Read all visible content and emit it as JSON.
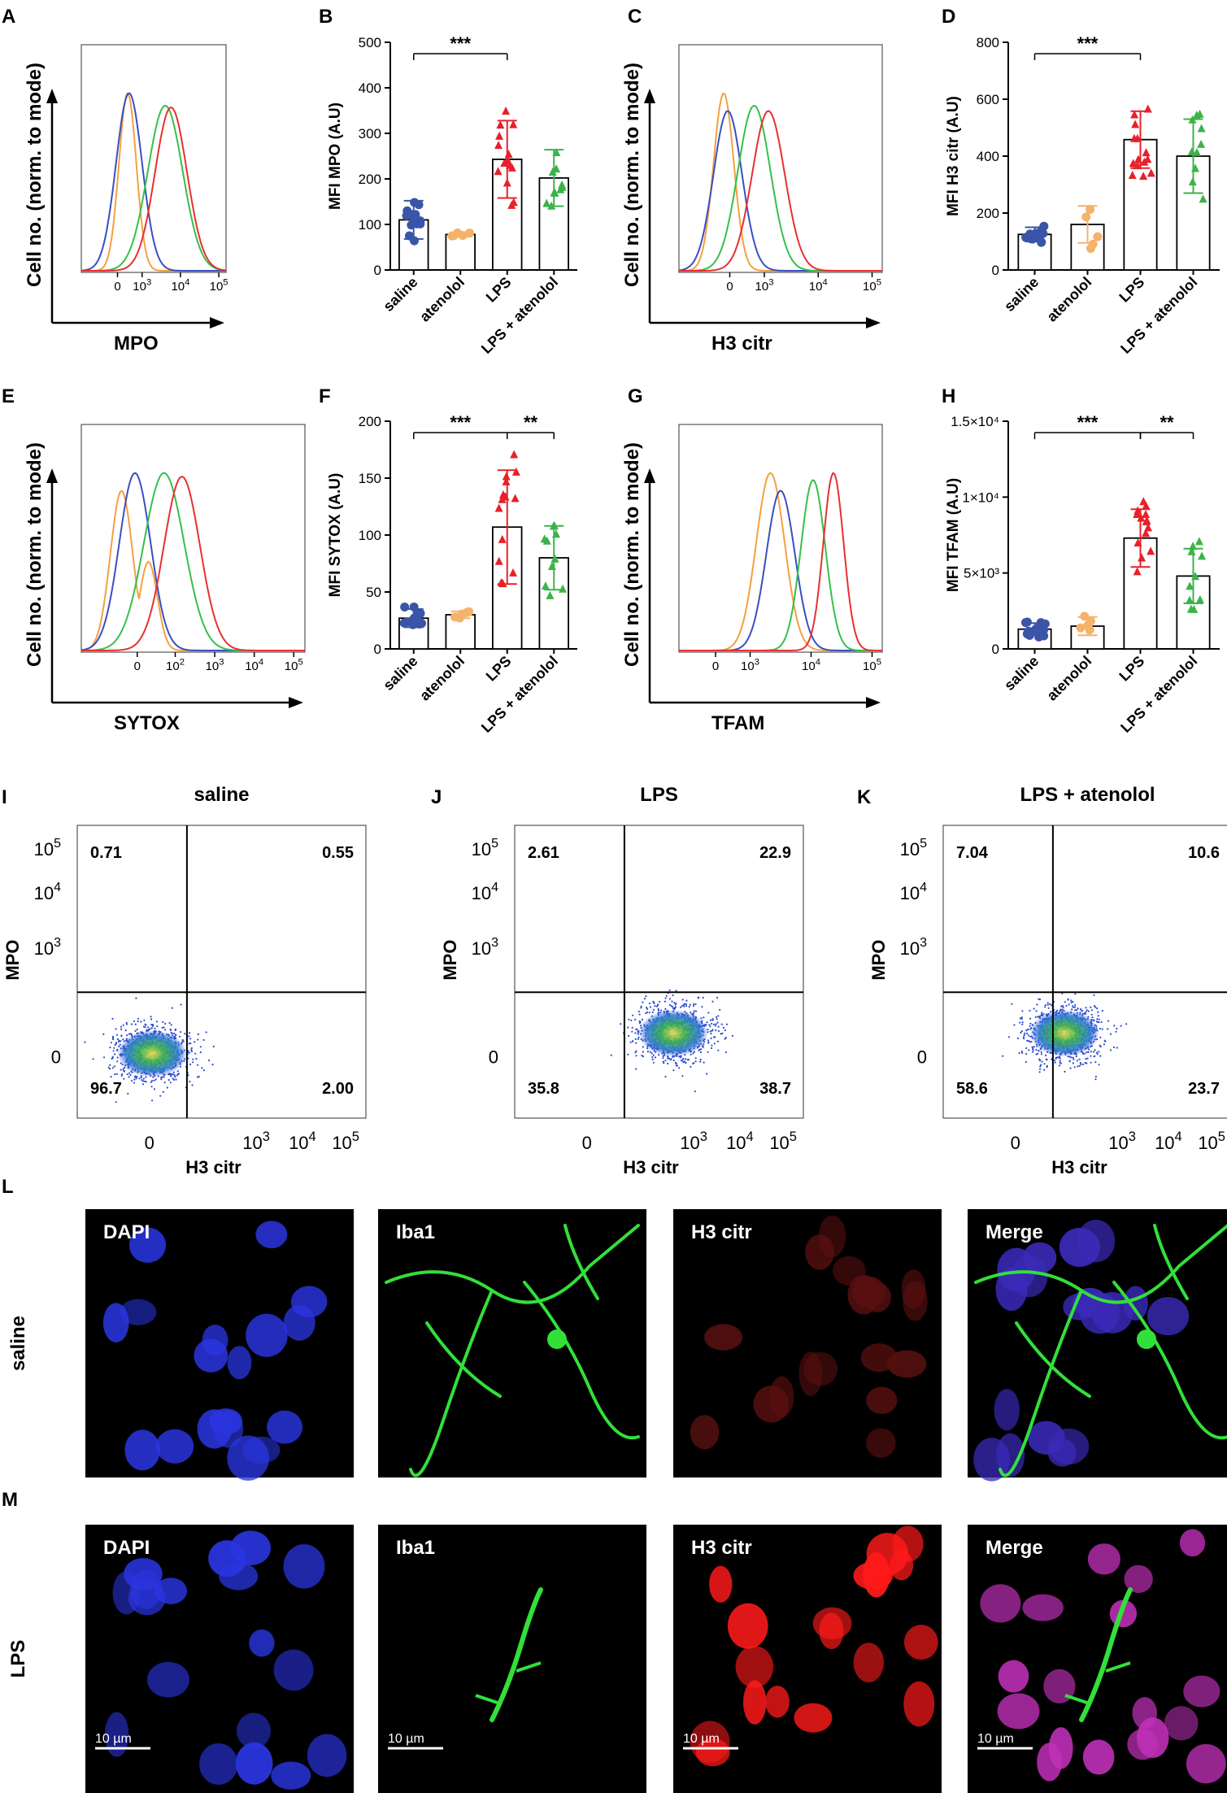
{
  "panel_letters": [
    "A",
    "B",
    "C",
    "D",
    "E",
    "F",
    "G",
    "H",
    "I",
    "J",
    "K",
    "L",
    "M"
  ],
  "histograms": [
    {
      "panel": "A",
      "xlabel": "MPO",
      "ylabel": "Cell no. (norm. to mode)",
      "xticks": [
        "0",
        "10",
        "10",
        "10"
      ],
      "xticks_exp": [
        "",
        "3",
        "4",
        "5"
      ]
    },
    {
      "panel": "C",
      "xlabel": "H3 citr",
      "ylabel": "Cell no. (norm. to mode)",
      "xticks": [
        "0",
        "10",
        "10",
        "10"
      ],
      "xticks_exp": [
        "",
        "3",
        "4",
        "5"
      ]
    },
    {
      "panel": "E",
      "xlabel": "SYTOX",
      "ylabel": "Cell no. (norm. to mode)",
      "xticks": [
        "0",
        "10",
        "10",
        "10",
        "10"
      ],
      "xticks_exp": [
        "",
        "2",
        "3",
        "4",
        "5"
      ]
    },
    {
      "panel": "G",
      "xlabel": "TFAM",
      "ylabel": "Cell no. (norm. to mode)",
      "xticks": [
        "0",
        "10",
        "10",
        "10"
      ],
      "xticks_exp": [
        "",
        "3",
        "4",
        "5"
      ]
    }
  ],
  "group_colors": {
    "saline": "#3a55a8",
    "atenolol": "#f5b26b",
    "LPS": "#e8202a",
    "LPS + atenolol": "#3cb34a"
  },
  "chart_data": [
    {
      "panel": "B",
      "type": "bar",
      "categories": [
        "saline",
        "atenolol",
        "LPS",
        "LPS + atenolol"
      ],
      "values": [
        110,
        78,
        243,
        202
      ],
      "errors": [
        42,
        5,
        85,
        62
      ],
      "ylabel": "MFI MPO (A.U)",
      "ylim": [
        0,
        500
      ],
      "yticks": [
        "0",
        "100",
        "200",
        "300",
        "400",
        "500"
      ],
      "significance": [
        {
          "from": 0,
          "to": 2,
          "text": "***"
        }
      ]
    },
    {
      "panel": "D",
      "type": "bar",
      "categories": [
        "saline",
        "atenolol",
        "LPS",
        "LPS + atenolol"
      ],
      "values": [
        125,
        160,
        458,
        400
      ],
      "errors": [
        25,
        65,
        100,
        130
      ],
      "ylabel": "MFI H3 citr (A.U)",
      "ylim": [
        0,
        800
      ],
      "yticks": [
        "0",
        "200",
        "400",
        "600",
        "800"
      ],
      "significance": [
        {
          "from": 0,
          "to": 2,
          "text": "***"
        }
      ]
    },
    {
      "panel": "F",
      "type": "bar",
      "categories": [
        "saline",
        "atenolol",
        "LPS",
        "LPS + atenolol"
      ],
      "values": [
        27,
        30,
        107,
        80
      ],
      "errors": [
        8,
        3,
        50,
        28
      ],
      "ylabel": "MFI SYTOX (A.U)",
      "ylim": [
        0,
        200
      ],
      "yticks": [
        "0",
        "50",
        "100",
        "150",
        "200"
      ],
      "significance": [
        {
          "from": 0,
          "to": 2,
          "text": "***"
        },
        {
          "from": 2,
          "to": 3,
          "text": "**"
        }
      ]
    },
    {
      "panel": "H",
      "type": "bar",
      "categories": [
        "saline",
        "atenolol",
        "LPS",
        "LPS + atenolol"
      ],
      "values": [
        1300,
        1500,
        7300,
        4800
      ],
      "errors": [
        400,
        600,
        1900,
        1800
      ],
      "ylabel": "MFI TFAM (A.U)",
      "ylim": [
        0,
        15000
      ],
      "yticks": [
        "0",
        "5×10³",
        "1×10⁴",
        "1.5×10⁴"
      ],
      "significance": [
        {
          "from": 0,
          "to": 2,
          "text": "***"
        },
        {
          "from": 2,
          "to": 3,
          "text": "**"
        }
      ]
    }
  ],
  "scatter_panels": [
    {
      "panel": "I",
      "title": "saline",
      "quadrants": [
        "0.71",
        "0.55",
        "96.7",
        "2.00"
      ]
    },
    {
      "panel": "J",
      "title": "LPS",
      "quadrants": [
        "2.61",
        "22.9",
        "35.8",
        "38.7"
      ]
    },
    {
      "panel": "K",
      "title": "LPS + atenolol",
      "quadrants": [
        "7.04",
        "10.6",
        "58.6",
        "23.7"
      ]
    }
  ],
  "scatter_axes": {
    "xlabel": "H3 citr",
    "ylabel": "MPO",
    "ticks": [
      "0",
      "10",
      "10",
      "10"
    ],
    "tick_exp": [
      "",
      "3",
      "4",
      "5"
    ]
  },
  "micro": {
    "columns": [
      "DAPI",
      "Iba1",
      "H3 citr",
      "Merge"
    ],
    "rows": [
      "saline",
      "LPS"
    ],
    "scalebar": "10 µm"
  }
}
